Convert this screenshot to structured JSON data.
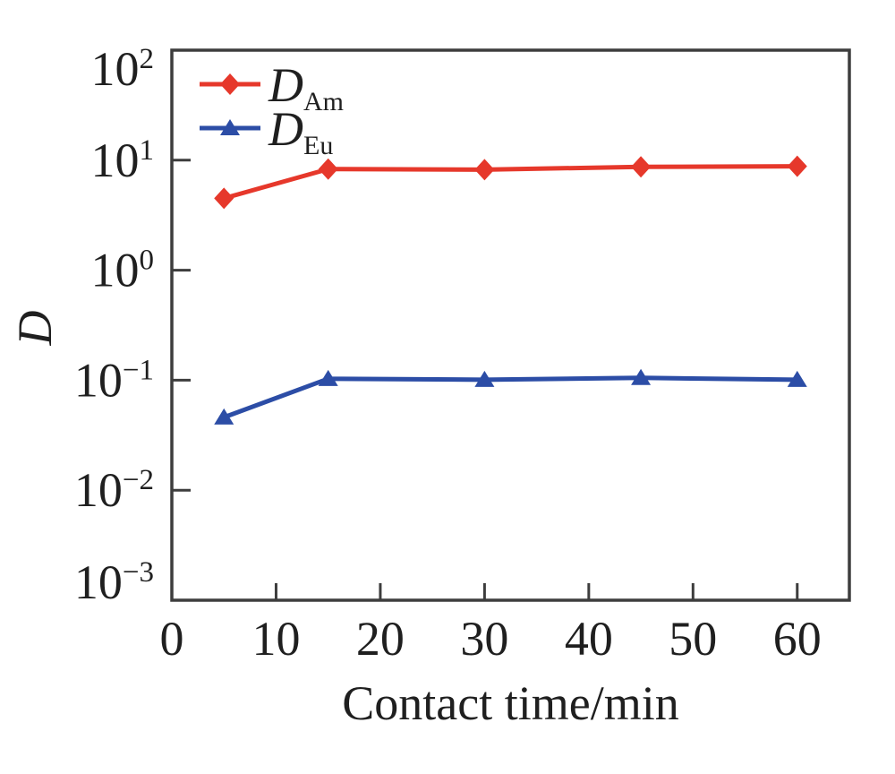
{
  "figure": {
    "background": "#ffffff",
    "axis_color": "#3d3d3d",
    "text_color": "#1f1f1f"
  },
  "chart_data": {
    "type": "line",
    "title": "",
    "xlabel": "Contact time/min",
    "ylabel": "D",
    "y_scale": "log",
    "grid": false,
    "legend_position": "top-left-inside",
    "xlim": [
      0,
      65
    ],
    "ylim_exponents": [
      -3,
      2
    ],
    "x_ticks": [
      0,
      10,
      20,
      30,
      40,
      50,
      60
    ],
    "y_tick_exponents": [
      2,
      1,
      0,
      -1,
      -2,
      -3
    ],
    "x": [
      5,
      15,
      30,
      45,
      60
    ],
    "series": [
      {
        "name": "D_Am",
        "label_main": "D",
        "label_sub": "Am",
        "marker": "diamond",
        "color": "#e6382b",
        "values": [
          4.5,
          8.3,
          8.2,
          8.7,
          8.8
        ]
      },
      {
        "name": "D_Eu",
        "label_main": "D",
        "label_sub": "Eu",
        "marker": "triangle",
        "color": "#2c4da6",
        "values": [
          0.046,
          0.103,
          0.101,
          0.105,
          0.101
        ]
      }
    ]
  }
}
